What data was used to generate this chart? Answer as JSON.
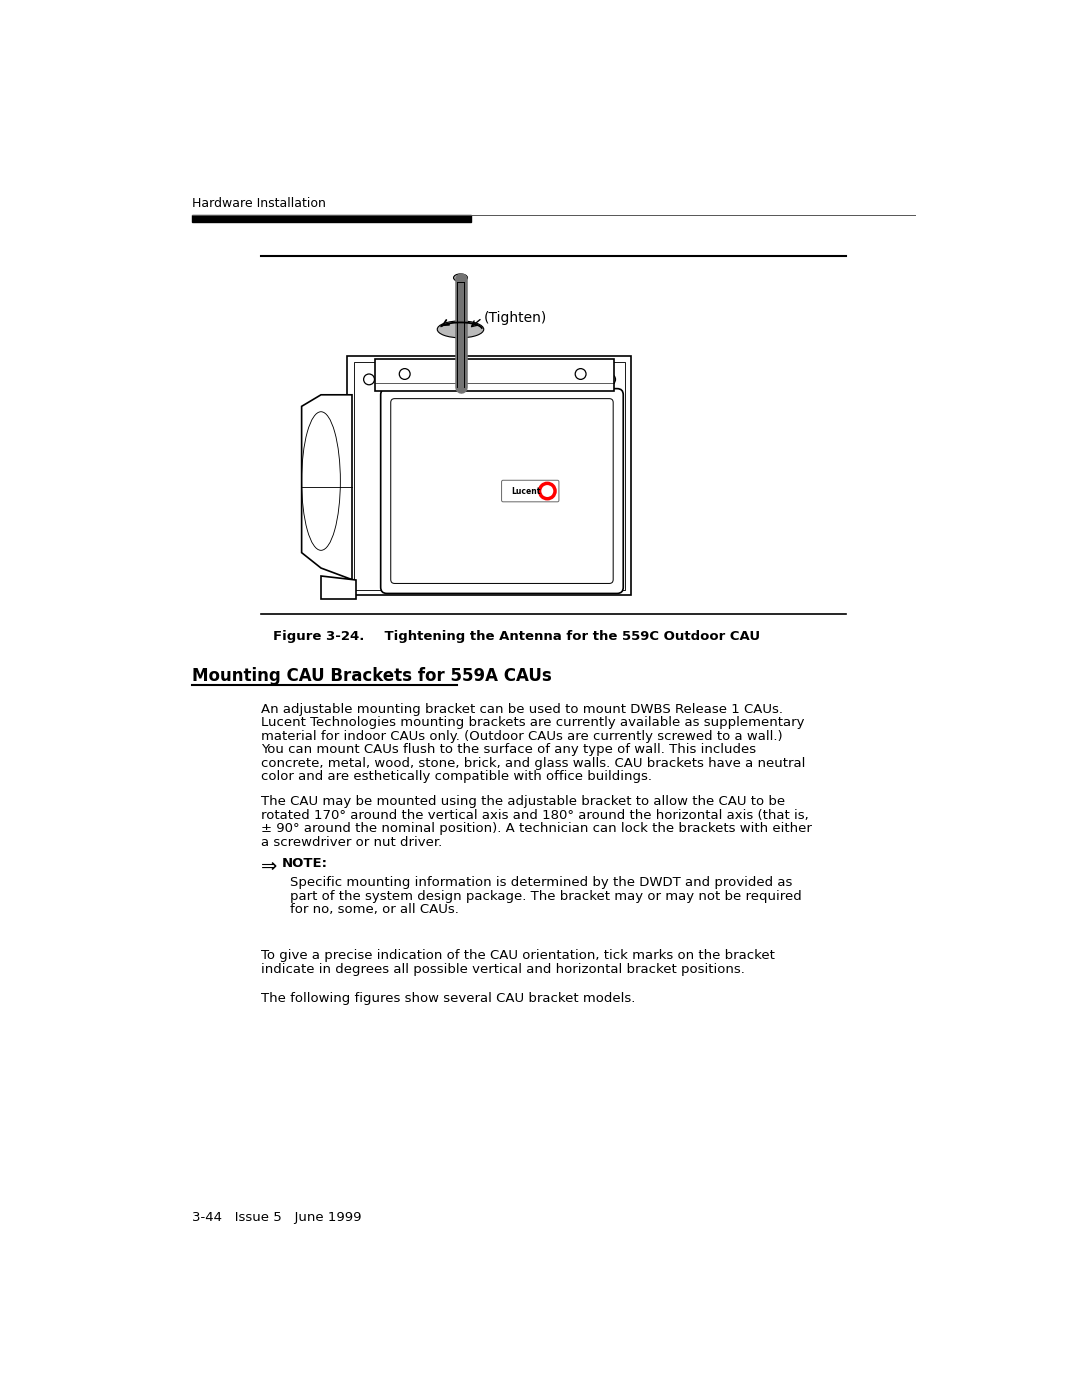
{
  "bg_color": "#ffffff",
  "header_text": "Hardware Installation",
  "figure_caption_bold": "Figure 3-24.",
  "figure_caption_rest": "    Tightening the Antenna for the 559C Outdoor CAU",
  "section_title": "Mounting CAU Brackets for 559A CAUs",
  "para1_lines": [
    "An adjustable mounting bracket can be used to mount DWBS Release 1 CAUs.",
    "Lucent Technologies mounting brackets are currently available as supplementary",
    "material for indoor CAUs only. (Outdoor CAUs are currently screwed to a wall.)",
    "You can mount CAUs flush to the surface of any type of wall. This includes",
    "concrete, metal, wood, stone, brick, and glass walls. CAU brackets have a neutral",
    "color and are esthetically compatible with office buildings."
  ],
  "para2_lines": [
    "The CAU may be mounted using the adjustable bracket to allow the CAU to be",
    "rotated 170° around the vertical axis and 180° around the horizontal axis (that is,",
    "± 90° around the nominal position). A technician can lock the brackets with either",
    "a screwdriver or nut driver."
  ],
  "note_label": "NOTE:",
  "note_lines": [
    "Specific mounting information is determined by the DWDT and provided as",
    "part of the system design package. The bracket may or may not be required",
    "for no, some, or all CAUs."
  ],
  "para3_lines": [
    "To give a precise indication of the CAU orientation, tick marks on the bracket",
    "indicate in degrees all possible vertical and horizontal bracket positions."
  ],
  "para4_lines": [
    "The following figures show several CAU bracket models."
  ],
  "footer_text": "3-44   Issue 5   June 1999",
  "tighten_label": "(Tighten)"
}
